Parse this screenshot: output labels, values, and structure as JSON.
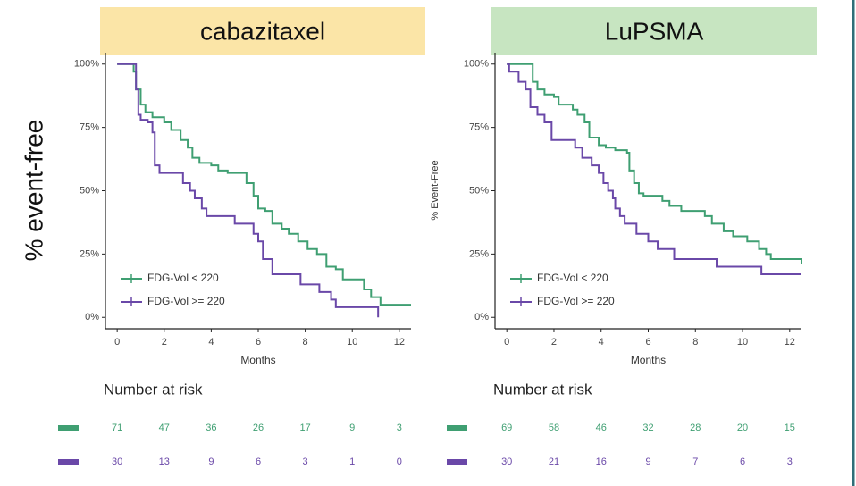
{
  "chart_data": [
    {
      "type": "step",
      "title": "cabazitaxel",
      "xlabel": "Months",
      "ylabel": "% event-free",
      "xlim": [
        -0.5,
        12.5
      ],
      "ylim": [
        -4.5,
        104.5
      ],
      "xticks": [
        0,
        2,
        4,
        6,
        8,
        10,
        12
      ],
      "yticks": [
        {
          "value": 0,
          "label": "0%"
        },
        {
          "value": 25,
          "label": "25%"
        },
        {
          "value": 50,
          "label": "50%"
        },
        {
          "value": 75,
          "label": "75%"
        },
        {
          "value": 100,
          "label": "100%"
        }
      ],
      "risk_title": "Number at risk",
      "series": [
        {
          "name": "FDG-Vol < 220",
          "color": "#3f9f72",
          "x": [
            0,
            0.7,
            0.8,
            1.0,
            1.2,
            1.5,
            2,
            2.3,
            2.7,
            3,
            3.2,
            3.5,
            4,
            4.3,
            4.7,
            5.5,
            5.8,
            6,
            6.3,
            6.6,
            7,
            7.3,
            7.7,
            8.1,
            8.5,
            8.9,
            9.3,
            9.6,
            10.5,
            10.8,
            11.2,
            12.5
          ],
          "y": [
            100,
            97,
            90,
            84,
            81,
            79,
            77,
            74,
            70,
            67,
            63,
            61,
            60,
            58,
            57,
            53,
            48,
            43,
            42,
            37,
            35,
            33,
            30,
            27,
            25,
            20,
            19,
            15,
            11,
            8,
            5,
            5
          ],
          "at_risk": [
            71,
            47,
            36,
            26,
            17,
            9,
            3
          ]
        },
        {
          "name": "FDG-Vol >= 220",
          "color": "#6a48a8",
          "x": [
            0,
            0.8,
            0.9,
            1,
            1.3,
            1.5,
            1.6,
            1.8,
            2.8,
            3.1,
            3.3,
            3.6,
            3.8,
            5,
            5.8,
            6,
            6.2,
            6.6,
            7.8,
            8.6,
            9.1,
            9.3,
            11.1
          ],
          "y": [
            100,
            90,
            80,
            78,
            77,
            73,
            60,
            57,
            53,
            50,
            47,
            43,
            40,
            37,
            33,
            30,
            23,
            17,
            13,
            10,
            7,
            4,
            0
          ],
          "at_risk": [
            30,
            13,
            9,
            6,
            3,
            1,
            0
          ]
        }
      ]
    },
    {
      "type": "step",
      "title": "LuPSMA",
      "xlabel": "Months",
      "ylabel": "% Event-Free",
      "xlim": [
        -0.5,
        12.5
      ],
      "ylim": [
        -4.5,
        104.5
      ],
      "xticks": [
        0,
        2,
        4,
        6,
        8,
        10,
        12
      ],
      "yticks": [
        {
          "value": 0,
          "label": "0%"
        },
        {
          "value": 25,
          "label": "25%"
        },
        {
          "value": 50,
          "label": "50%"
        },
        {
          "value": 75,
          "label": "75%"
        },
        {
          "value": 100,
          "label": "100%"
        }
      ],
      "risk_title": "Number at risk",
      "series": [
        {
          "name": "FDG-Vol < 220",
          "color": "#3f9f72",
          "x": [
            0,
            1.1,
            1.3,
            1.6,
            2,
            2.2,
            2.8,
            3,
            3.3,
            3.5,
            3.9,
            4.2,
            4.6,
            5.1,
            5.2,
            5.4,
            5.6,
            5.8,
            6.6,
            6.9,
            7.4,
            8.4,
            8.7,
            9.2,
            9.6,
            10.2,
            10.7,
            11,
            11.2,
            12.5
          ],
          "y": [
            100,
            93,
            90,
            88,
            87,
            84,
            82,
            80,
            77,
            71,
            68,
            67,
            66,
            65,
            58,
            53,
            49,
            48,
            46,
            44,
            42,
            40,
            37,
            34,
            32,
            30,
            27,
            25,
            23,
            21
          ],
          "at_risk": [
            69,
            58,
            46,
            32,
            28,
            20,
            15
          ]
        },
        {
          "name": "FDG-Vol >= 220",
          "color": "#6a48a8",
          "x": [
            0,
            0.1,
            0.5,
            0.8,
            1,
            1.3,
            1.6,
            1.9,
            2.9,
            3.2,
            3.6,
            3.9,
            4.1,
            4.3,
            4.5,
            4.6,
            4.8,
            5,
            5.5,
            6,
            6.4,
            7.1,
            8.9,
            10.8,
            12.5
          ],
          "y": [
            100,
            97,
            93,
            90,
            83,
            80,
            77,
            70,
            67,
            63,
            60,
            57,
            53,
            50,
            47,
            43,
            40,
            37,
            33,
            30,
            27,
            23,
            20,
            17,
            17
          ],
          "at_risk": [
            30,
            21,
            16,
            9,
            7,
            6,
            3
          ]
        }
      ]
    }
  ]
}
